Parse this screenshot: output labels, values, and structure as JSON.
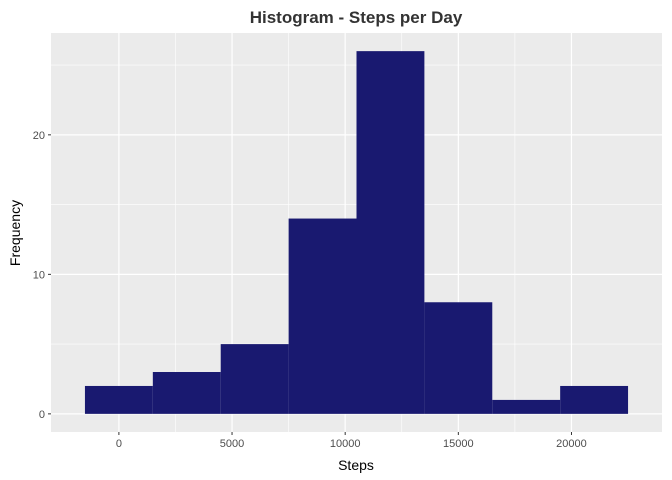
{
  "chart_data": {
    "type": "bar",
    "title": "Histogram - Steps per Day",
    "xlabel": "Steps",
    "ylabel": "Frequency",
    "bins": [
      {
        "x_start": -1500,
        "x_end": 1500,
        "count": 2
      },
      {
        "x_start": 1500,
        "x_end": 4500,
        "count": 3
      },
      {
        "x_start": 4500,
        "x_end": 7500,
        "count": 5
      },
      {
        "x_start": 7500,
        "x_end": 10500,
        "count": 14
      },
      {
        "x_start": 10500,
        "x_end": 13500,
        "count": 26
      },
      {
        "x_start": 13500,
        "x_end": 16500,
        "count": 8
      },
      {
        "x_start": 16500,
        "x_end": 19500,
        "count": 1
      },
      {
        "x_start": 19500,
        "x_end": 22500,
        "count": 2
      }
    ],
    "x_ticks": [
      0,
      5000,
      10000,
      15000,
      20000
    ],
    "y_ticks": [
      0,
      10,
      20
    ],
    "xlim": [
      -3000,
      24000
    ],
    "ylim": [
      -1.3,
      27.3
    ],
    "grid": true,
    "bar_color": "#191970",
    "panel_background": "#ebebeb",
    "grid_color": "#ffffff"
  }
}
